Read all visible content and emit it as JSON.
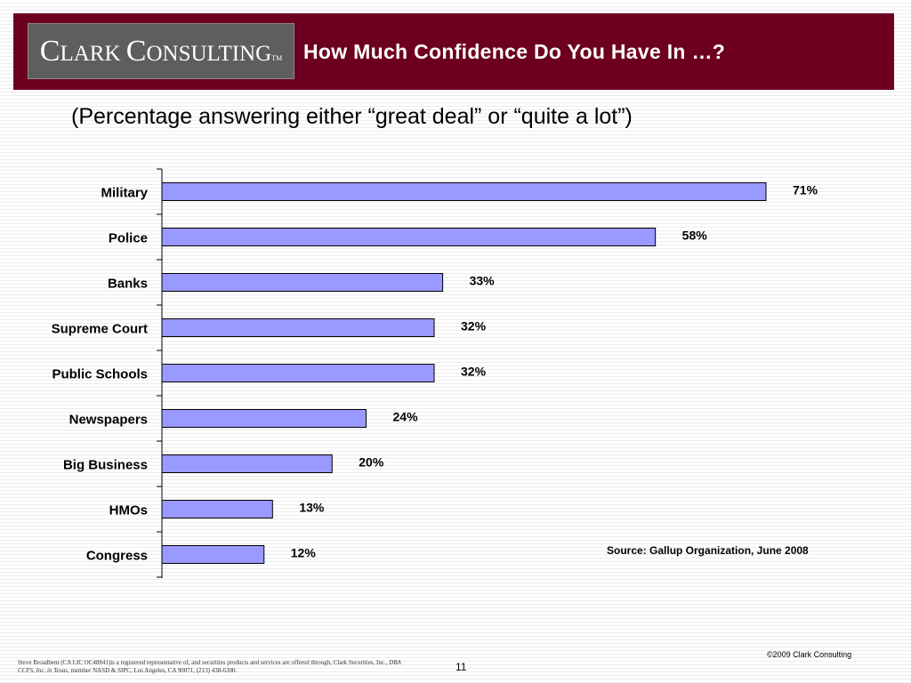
{
  "header": {
    "logo_text_big": "C",
    "logo_text_small": "LARK ",
    "logo_text_big2": "C",
    "logo_text_small2": "ONSULTING",
    "logo_tm": "TM",
    "title": "How Much Confidence Do You Have In …?"
  },
  "subtitle": "(Percentage answering either “great deal” or “quite a lot”)",
  "colors": {
    "header_bg": "#6d0020",
    "bar_fill": "#9999ff",
    "bar_stroke": "#000000"
  },
  "chart_data": {
    "type": "bar",
    "orientation": "horizontal",
    "categories": [
      "Military",
      "Police",
      "Banks",
      "Supreme Court",
      "Public Schools",
      "Newspapers",
      "Big Business",
      "HMOs",
      "Congress"
    ],
    "values": [
      71,
      58,
      33,
      32,
      32,
      24,
      20,
      13,
      12
    ],
    "data_labels": [
      "71%",
      "58%",
      "33%",
      "32%",
      "32%",
      "24%",
      "20%",
      "13%",
      "12%"
    ],
    "xlim": [
      0,
      71
    ],
    "grid": false
  },
  "source": "Source: Gallup Organization, June 2008",
  "footer": {
    "disclaimer_1": "Steve Broadbent  (CA LIC OC48841)is a registered representative of, and securities products and services are offered through, Clark Securities, Inc., ",
    "disclaimer_dba": "DBA CCFS, Inc. in Texas",
    "disclaimer_2": ", member NASD & SIPC, Los Angeles, CA  90071, (213) 438-6300.",
    "page_number": "11",
    "copyright": "©2009 Clark Consulting"
  }
}
